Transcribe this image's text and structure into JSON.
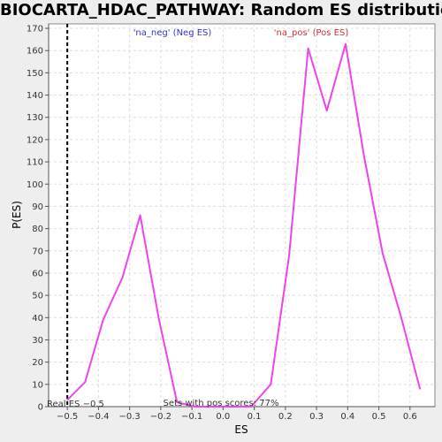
{
  "chart_data": {
    "type": "line",
    "title": "BIOCARTA_HDAC_PATHWAY: Random ES distribution",
    "xlabel": "ES",
    "ylabel": "P(ES)",
    "xlim": [
      -0.56,
      0.68
    ],
    "ylim": [
      0,
      172
    ],
    "x_ticks": [
      -0.5,
      -0.4,
      -0.3,
      -0.2,
      -0.1,
      0.0,
      0.1,
      0.2,
      0.3,
      0.4,
      0.5,
      0.6
    ],
    "x_tick_labels": [
      "−0.5",
      "−0.4",
      "−0.3",
      "−0.2",
      "−0.1",
      "0.0",
      "0.1",
      "0.2",
      "0.3",
      "0.4",
      "0.5",
      "0.6"
    ],
    "y_ticks": [
      0,
      10,
      20,
      30,
      40,
      50,
      60,
      70,
      80,
      90,
      100,
      110,
      120,
      130,
      140,
      150,
      160,
      170
    ],
    "grid": true,
    "series": [
      {
        "color": "#ee44ee",
        "points": [
          [
            -0.5,
            3
          ],
          [
            -0.443,
            11
          ],
          [
            -0.385,
            39
          ],
          [
            -0.323,
            58
          ],
          [
            -0.266,
            86
          ],
          [
            -0.207,
            40
          ],
          [
            -0.148,
            2
          ],
          [
            -0.09,
            0
          ],
          [
            -0.03,
            0
          ],
          [
            0.03,
            0
          ],
          [
            0.09,
            0
          ],
          [
            0.153,
            10
          ],
          [
            0.212,
            68
          ],
          [
            0.273,
            161
          ],
          [
            0.333,
            133
          ],
          [
            0.393,
            163
          ],
          [
            0.452,
            113
          ],
          [
            0.512,
            69
          ],
          [
            0.572,
            40
          ],
          [
            0.632,
            8
          ]
        ]
      }
    ],
    "vline": {
      "x": -0.5,
      "style": "dashed",
      "color": "#000000"
    },
    "annotations": {
      "neg": "'na_neg' (Neg ES)",
      "pos": "'na_pos' (Pos ES)",
      "real_es": "Real ES −0.5",
      "pos_scores": "Sets with pos scores: 77%"
    }
  }
}
